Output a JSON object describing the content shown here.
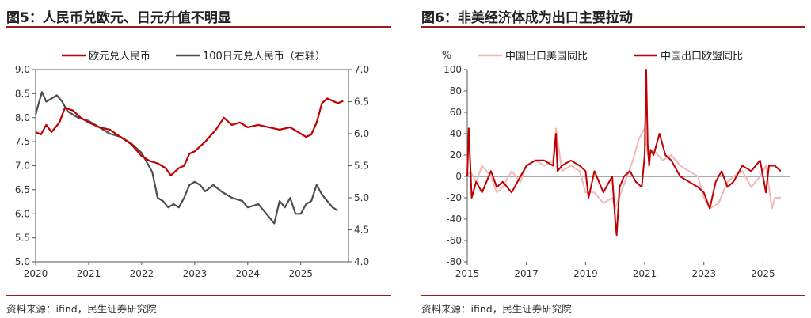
{
  "left_panel": {
    "title": "图5：人民币兑欧元、日元升值不明显",
    "source": "资料来源：ifind，民生证券研究院"
  },
  "right_panel": {
    "title": "图6：非美经济体成为出口主要拉动",
    "source": "资料来源：ifind，民生证券研究院"
  },
  "colors": {
    "red": "#c00000",
    "dark": "#4d4d4d",
    "pink": "#f2b8b8",
    "rule": "#9b1c1c"
  },
  "chart_data": [
    {
      "type": "line",
      "title": "图5：人民币兑欧元、日元升值不明显",
      "x_ticks": [
        2020,
        2021,
        2022,
        2023,
        2024,
        2025
      ],
      "xlim": [
        2020.0,
        2025.9
      ],
      "y_left": {
        "ticks": [
          "9.0",
          "8.5",
          "8.0",
          "7.5",
          "7.0",
          "6.5",
          "6.0",
          "5.5",
          "5.0"
        ],
        "ylim": [
          5.0,
          9.0
        ]
      },
      "y_right": {
        "ticks": [
          "7.0",
          "6.5",
          "6.0",
          "5.5",
          "5.0",
          "4.5",
          "4.0"
        ],
        "ylim": [
          4.0,
          7.0
        ]
      },
      "series": [
        {
          "name": "欧元兑人民币",
          "axis": "left",
          "x": [
            2020.0,
            2020.1,
            2020.2,
            2020.3,
            2020.45,
            2020.55,
            2020.7,
            2020.85,
            2021.0,
            2021.2,
            2021.4,
            2021.6,
            2021.8,
            2022.0,
            2022.15,
            2022.3,
            2022.45,
            2022.55,
            2022.7,
            2022.8,
            2022.9,
            2023.0,
            2023.2,
            2023.4,
            2023.55,
            2023.7,
            2023.85,
            2024.0,
            2024.2,
            2024.4,
            2024.6,
            2024.8,
            2024.95,
            2025.1,
            2025.2,
            2025.3,
            2025.4,
            2025.5,
            2025.6,
            2025.7,
            2025.8
          ],
          "values": [
            7.7,
            7.65,
            7.85,
            7.7,
            7.9,
            8.2,
            8.15,
            8.0,
            7.9,
            7.8,
            7.75,
            7.6,
            7.45,
            7.2,
            7.1,
            7.05,
            6.95,
            6.8,
            6.95,
            7.0,
            7.25,
            7.3,
            7.5,
            7.75,
            8.0,
            7.85,
            7.9,
            7.8,
            7.85,
            7.8,
            7.75,
            7.8,
            7.7,
            7.6,
            7.65,
            7.9,
            8.3,
            8.4,
            8.35,
            8.3,
            8.35
          ]
        },
        {
          "name": "100日元兑人民币（右轴）",
          "axis": "right",
          "x": [
            2020.0,
            2020.05,
            2020.12,
            2020.2,
            2020.3,
            2020.4,
            2020.5,
            2020.6,
            2020.8,
            2021.0,
            2021.2,
            2021.4,
            2021.6,
            2021.8,
            2022.0,
            2022.1,
            2022.2,
            2022.3,
            2022.4,
            2022.5,
            2022.6,
            2022.7,
            2022.8,
            2022.9,
            2023.0,
            2023.1,
            2023.2,
            2023.35,
            2023.5,
            2023.7,
            2023.9,
            2024.0,
            2024.2,
            2024.4,
            2024.5,
            2024.6,
            2024.7,
            2024.8,
            2024.9,
            2025.0,
            2025.1,
            2025.2,
            2025.3,
            2025.4,
            2025.5,
            2025.6,
            2025.7
          ],
          "values": [
            6.3,
            6.45,
            6.65,
            6.5,
            6.55,
            6.6,
            6.5,
            6.35,
            6.25,
            6.2,
            6.1,
            6.0,
            5.95,
            5.85,
            5.7,
            5.55,
            5.4,
            5.0,
            4.95,
            4.85,
            4.9,
            4.85,
            5.0,
            5.2,
            5.25,
            5.2,
            5.1,
            5.2,
            5.1,
            5.0,
            4.95,
            4.85,
            4.9,
            4.7,
            4.6,
            4.95,
            4.85,
            5.0,
            4.75,
            4.75,
            4.9,
            4.95,
            5.2,
            5.05,
            4.95,
            4.85,
            4.8
          ]
        }
      ],
      "legend_position": "top"
    },
    {
      "type": "line",
      "title": "图6：非美经济体成为出口主要拉动",
      "ylabel": "%",
      "x_ticks": [
        2015,
        2017,
        2019,
        2021,
        2023,
        2025
      ],
      "xlim": [
        2015.0,
        2025.9
      ],
      "y_ticks": [
        "100",
        "80",
        "60",
        "40",
        "20",
        "0",
        "-20",
        "-40",
        "-60",
        "-80"
      ],
      "ylim": [
        -80,
        100
      ],
      "series": [
        {
          "name": "中国出口美国同比",
          "x": [
            2015.0,
            2015.1,
            2015.3,
            2015.5,
            2015.8,
            2016.0,
            2016.2,
            2016.5,
            2016.8,
            2017.0,
            2017.3,
            2017.6,
            2017.9,
            2018.0,
            2018.2,
            2018.5,
            2018.8,
            2019.0,
            2019.3,
            2019.6,
            2019.9,
            2020.0,
            2020.2,
            2020.4,
            2020.6,
            2020.8,
            2021.0,
            2021.1,
            2021.3,
            2021.6,
            2021.9,
            2022.2,
            2022.5,
            2022.8,
            2023.0,
            2023.2,
            2023.5,
            2023.8,
            2024.0,
            2024.3,
            2024.6,
            2024.9,
            2025.1,
            2025.3,
            2025.4,
            2025.6
          ],
          "values": [
            0,
            5,
            -5,
            10,
            0,
            -15,
            -10,
            5,
            -5,
            10,
            15,
            10,
            15,
            45,
            5,
            10,
            5,
            -15,
            -15,
            -25,
            -20,
            -30,
            -15,
            0,
            15,
            35,
            45,
            20,
            25,
            15,
            20,
            10,
            5,
            0,
            -20,
            -30,
            -25,
            -5,
            0,
            5,
            -10,
            0,
            10,
            -30,
            -20,
            -20
          ]
        },
        {
          "name": "中国出口欧盟同比",
          "x": [
            2015.0,
            2015.05,
            2015.15,
            2015.3,
            2015.5,
            2015.8,
            2016.0,
            2016.2,
            2016.5,
            2016.8,
            2017.0,
            2017.3,
            2017.6,
            2017.9,
            2018.0,
            2018.05,
            2018.2,
            2018.5,
            2018.8,
            2019.0,
            2019.1,
            2019.3,
            2019.6,
            2019.9,
            2020.0,
            2020.05,
            2020.15,
            2020.3,
            2020.5,
            2020.7,
            2020.9,
            2021.0,
            2021.05,
            2021.1,
            2021.15,
            2021.2,
            2021.3,
            2021.5,
            2021.7,
            2021.9,
            2022.2,
            2022.5,
            2022.8,
            2023.0,
            2023.2,
            2023.4,
            2023.6,
            2023.8,
            2024.0,
            2024.3,
            2024.6,
            2024.9,
            2025.1,
            2025.2,
            2025.4,
            2025.6
          ],
          "values": [
            0,
            45,
            -20,
            -5,
            -15,
            5,
            -10,
            -5,
            -15,
            0,
            10,
            15,
            15,
            10,
            40,
            5,
            10,
            15,
            10,
            5,
            -20,
            5,
            -15,
            0,
            -40,
            -55,
            -10,
            0,
            5,
            -5,
            -10,
            20,
            100,
            30,
            10,
            25,
            20,
            40,
            20,
            15,
            0,
            -5,
            -10,
            -15,
            -30,
            -5,
            5,
            -10,
            -5,
            10,
            5,
            15,
            -15,
            10,
            10,
            5
          ]
        }
      ],
      "legend_position": "top"
    }
  ]
}
